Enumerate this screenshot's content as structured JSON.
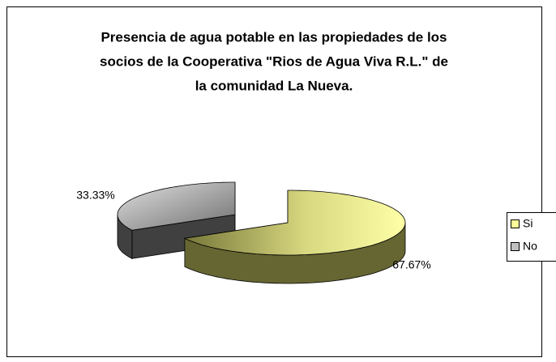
{
  "chart_data": {
    "type": "pie3d",
    "title_lines": [
      "Presencia de agua potable en las propiedades de los",
      "socios de la Cooperativa \"Rios de Agua Viva R.L.\" de",
      "la comunidad La Nueva."
    ],
    "categories": [
      "Si",
      "No"
    ],
    "values": [
      67.67,
      33.33
    ],
    "value_labels": [
      "67.67%",
      "33.33%"
    ],
    "colors": [
      "#ffff99",
      "#c0c0c0"
    ],
    "legend": "right"
  }
}
